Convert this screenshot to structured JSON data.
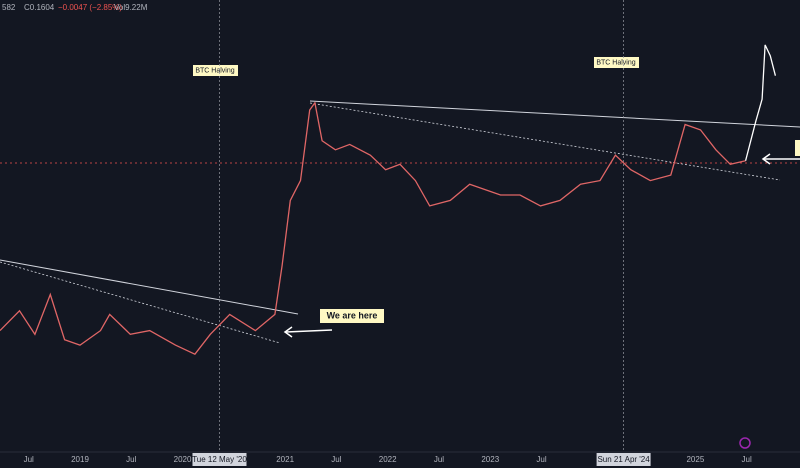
{
  "header": {
    "fragment": "582",
    "close": "C0.1604",
    "change": "−0.0047 (−2.85%)",
    "volume": "Vol9.22M"
  },
  "chart_data": {
    "type": "line",
    "color": "#e06666",
    "projection_color": "#ffffff",
    "annotations": [
      "BTC Halving",
      "BTC Halving",
      "We are here"
    ],
    "x": [
      2018.22,
      2018.41,
      2018.56,
      2018.71,
      2018.85,
      2019.0,
      2019.2,
      2019.29,
      2019.49,
      2019.68,
      2019.93,
      2020.12,
      2020.27,
      2020.46,
      2020.71,
      2020.9,
      2020.97,
      2021.05,
      2021.15,
      2021.24,
      2021.29,
      2021.36,
      2021.49,
      2021.63,
      2021.83,
      2021.98,
      2022.12,
      2022.27,
      2022.41,
      2022.61,
      2022.8,
      2022.95,
      2023.1,
      2023.29,
      2023.49,
      2023.68,
      2023.88,
      2024.07,
      2024.22,
      2024.37,
      2024.56,
      2024.76,
      2024.9,
      2025.05,
      2025.2,
      2025.34,
      2025.49
    ],
    "values": [
      0.066,
      0.077,
      0.064,
      0.086,
      0.061,
      0.058,
      0.066,
      0.075,
      0.064,
      0.066,
      0.058,
      0.053,
      0.064,
      0.075,
      0.066,
      0.075,
      0.102,
      0.138,
      0.149,
      0.188,
      0.192,
      0.171,
      0.166,
      0.169,
      0.163,
      0.155,
      0.158,
      0.149,
      0.135,
      0.138,
      0.147,
      0.144,
      0.141,
      0.141,
      0.135,
      0.138,
      0.147,
      0.149,
      0.163,
      0.155,
      0.149,
      0.152,
      0.18,
      0.177,
      0.166,
      0.158,
      0.16
    ],
    "projection": {
      "x": [
        2025.49,
        2025.59,
        2025.65,
        2025.68,
        2025.73,
        2025.78
      ],
      "values": [
        0.16,
        0.182,
        0.194,
        0.224,
        0.218,
        0.207
      ]
    },
    "xlim": [
      2018.22,
      2026.02
    ],
    "ylim": [
      0,
      0.24
    ],
    "xticks": [
      {
        "value": 2018.5,
        "label": "Jul"
      },
      2019,
      {
        "value": 2019.5,
        "label": "Jul"
      },
      2020,
      {
        "value": 2020.36,
        "label": "Tue 12 May '20"
      },
      2021,
      {
        "value": 2021.5,
        "label": "Jul"
      },
      2022,
      {
        "value": 2022.5,
        "label": "Jul"
      },
      2023,
      {
        "value": 2023.5,
        "label": "Jul"
      },
      {
        "value": 2024.3,
        "label": "Sun 21 Apr '24"
      },
      2025,
      {
        "value": 2025.5,
        "label": "Jul"
      }
    ],
    "halving_ticks": [
      4,
      11
    ]
  }
}
